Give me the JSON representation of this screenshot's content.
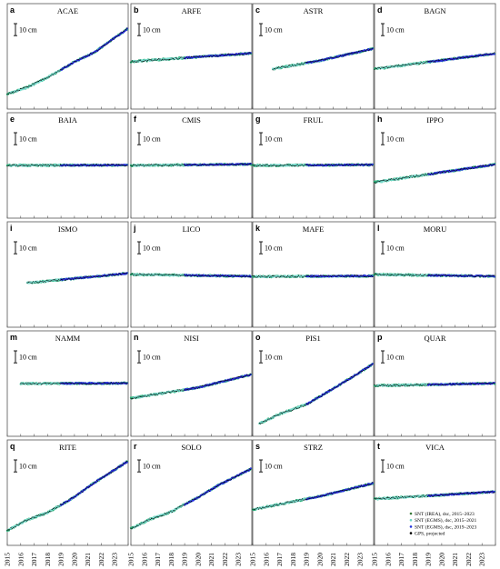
{
  "chart_data": {
    "type": "scatter",
    "layout": "small-multiples 4 columns x 5 rows",
    "x_ticks": [
      "2015",
      "2016",
      "2017",
      "2018",
      "2019",
      "2020",
      "2021",
      "2022",
      "2023"
    ],
    "xlim": [
      2015,
      2024
    ],
    "scale_bar_label": "10 cm",
    "scale_bar_cm": 10,
    "legend": {
      "placement": "bottom-right (panel t)",
      "entries": [
        {
          "label": "SNT (IREA), dsc, 2015–2023",
          "color": "#3a7a3a"
        },
        {
          "label": "SNT (EGMS), dsc, 2015–2021",
          "color": "#6fd6c6"
        },
        {
          "label": "SNT (EGMS), dsc, 2019–2023",
          "color": "#2233dd"
        },
        {
          "label": "GPS, projected",
          "color": "#000000"
        }
      ]
    },
    "series_colors": {
      "irea": "#2bb07a",
      "egms1": "#78dccf",
      "egms2": "#2a2ddd",
      "gps": "#000000"
    },
    "panels": [
      {
        "letter": "a",
        "name": "ACAE",
        "start": 2015,
        "x": [
          2015,
          2016.5,
          2018,
          2020,
          2021.5,
          2024
        ],
        "y_cm": [
          0,
          6,
          14,
          27,
          35,
          55
        ]
      },
      {
        "letter": "b",
        "name": "ARFE",
        "start": 2015,
        "x": [
          2015,
          2024
        ],
        "y_cm": [
          0,
          7
        ]
      },
      {
        "letter": "c",
        "name": "ASTR",
        "start": 2016.5,
        "x": [
          2016.5,
          2020,
          2024
        ],
        "y_cm": [
          0,
          7,
          17
        ]
      },
      {
        "letter": "d",
        "name": "BAGN",
        "start": 2015,
        "x": [
          2015,
          2024
        ],
        "y_cm": [
          0,
          13
        ]
      },
      {
        "letter": "e",
        "name": "BAIA",
        "start": 2015,
        "x": [
          2015,
          2024
        ],
        "y_cm": [
          0,
          0.3
        ]
      },
      {
        "letter": "f",
        "name": "CMIS",
        "start": 2015,
        "x": [
          2015,
          2024
        ],
        "y_cm": [
          0,
          1
        ]
      },
      {
        "letter": "g",
        "name": "FRUL",
        "start": 2015,
        "x": [
          2015,
          2024
        ],
        "y_cm": [
          0,
          0.5
        ]
      },
      {
        "letter": "h",
        "name": "IPPO",
        "start": 2015,
        "x": [
          2015,
          2024
        ],
        "y_cm": [
          0,
          15
        ]
      },
      {
        "letter": "i",
        "name": "ISMO",
        "start": 2016.5,
        "x": [
          2016.5,
          2024
        ],
        "y_cm": [
          0,
          8
        ]
      },
      {
        "letter": "j",
        "name": "LICO",
        "start": 2015,
        "x": [
          2015,
          2024
        ],
        "y_cm": [
          0,
          -1.5
        ]
      },
      {
        "letter": "k",
        "name": "MAFE",
        "start": 2015,
        "x": [
          2015,
          2024
        ],
        "y_cm": [
          0,
          0.5
        ]
      },
      {
        "letter": "l",
        "name": "MORU",
        "start": 2015,
        "x": [
          2015,
          2024
        ],
        "y_cm": [
          0,
          -1.5
        ]
      },
      {
        "letter": "m",
        "name": "NAMM",
        "start": 2016,
        "x": [
          2016,
          2024
        ],
        "y_cm": [
          0,
          0.3
        ]
      },
      {
        "letter": "n",
        "name": "NISI",
        "start": 2015,
        "x": [
          2015,
          2020,
          2024
        ],
        "y_cm": [
          0,
          9,
          20
        ]
      },
      {
        "letter": "o",
        "name": "PIS1",
        "start": 2015.5,
        "x": [
          2015.5,
          2017,
          2019,
          2020.5,
          2022,
          2024
        ],
        "y_cm": [
          0,
          8,
          16,
          26,
          36,
          50
        ]
      },
      {
        "letter": "p",
        "name": "QUAR",
        "start": 2015,
        "x": [
          2015,
          2024
        ],
        "y_cm": [
          0,
          2
        ]
      },
      {
        "letter": "q",
        "name": "RITE",
        "start": 2015,
        "x": [
          2015,
          2016.5,
          2018,
          2020,
          2021.5,
          2024
        ],
        "y_cm": [
          0,
          9,
          15,
          28,
          40,
          58
        ]
      },
      {
        "letter": "r",
        "name": "SOLO",
        "start": 2015,
        "x": [
          2015,
          2016.5,
          2018,
          2020,
          2021.5,
          2024
        ],
        "y_cm": [
          0,
          8,
          14,
          26,
          36,
          50
        ]
      },
      {
        "letter": "s",
        "name": "STRZ",
        "start": 2015,
        "x": [
          2015,
          2020,
          2024
        ],
        "y_cm": [
          0,
          11,
          22
        ]
      },
      {
        "letter": "t",
        "name": "VICA",
        "start": 2015,
        "x": [
          2015,
          2024
        ],
        "y_cm": [
          0,
          6
        ]
      }
    ]
  }
}
